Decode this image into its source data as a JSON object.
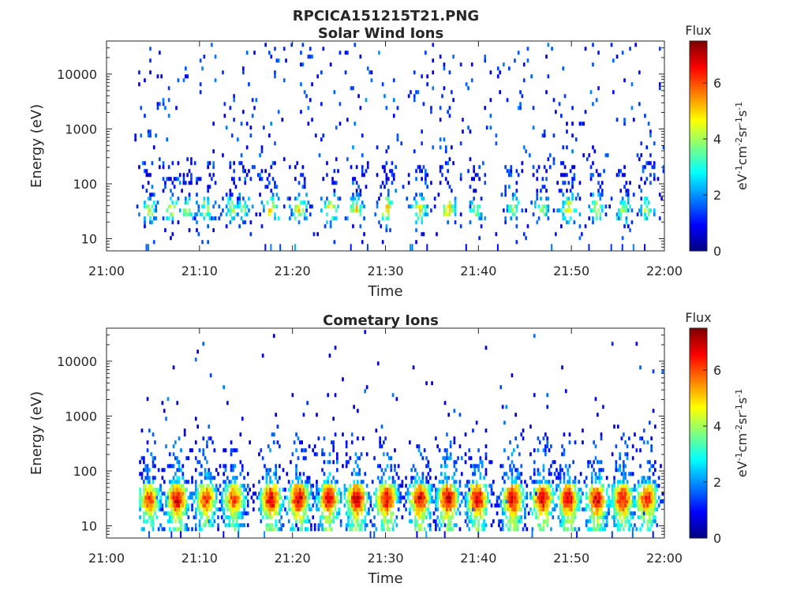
{
  "figure": {
    "filename": "RPCICA151215T21.PNG"
  },
  "colorbar": {
    "title": "Flux",
    "unit": "eV<sup>-1</sup>cm<sup>-2</sup>sr<sup>-1</sup>s<sup>-1</sup>",
    "unit_plain": "eV-1cm-2sr-1s-1",
    "ticks": [
      "0",
      "2",
      "4",
      "6"
    ],
    "range": [
      0,
      7.5
    ],
    "colormap": "jet"
  },
  "chart_data": [
    {
      "type": "heatmap",
      "title": "Solar Wind Ions",
      "xlabel": "Time",
      "ylabel": "Energy (eV)",
      "x_ticks": [
        "21:00",
        "21:10",
        "21:20",
        "21:30",
        "21:40",
        "21:50",
        "22:00"
      ],
      "x_range": [
        "21:00",
        "22:00"
      ],
      "y_ticks": [
        "10",
        "100",
        "1000",
        "10000"
      ],
      "y_range": [
        6,
        40000
      ],
      "y_scale": "log",
      "data_start": "21:03",
      "bursts": [
        {
          "t": "21:04.5",
          "peak_flux": 3.0
        },
        {
          "t": "21:06.8",
          "peak_flux": 3.5
        },
        {
          "t": "21:08.7",
          "peak_flux": 3.0
        },
        {
          "t": "21:10.6",
          "peak_flux": 3.0
        },
        {
          "t": "21:13.4",
          "peak_flux": 2.8
        },
        {
          "t": "21:14.6",
          "peak_flux": 2.8
        },
        {
          "t": "21:17.6",
          "peak_flux": 3.8
        },
        {
          "t": "21:20.6",
          "peak_flux": 3.8
        },
        {
          "t": "21:24.0",
          "peak_flux": 3.8
        },
        {
          "t": "21:26.8",
          "peak_flux": 3.6
        },
        {
          "t": "21:30.0",
          "peak_flux": 3.8
        },
        {
          "t": "21:33.6",
          "peak_flux": 3.6
        },
        {
          "t": "21:36.6",
          "peak_flux": 3.8
        },
        {
          "t": "21:39.8",
          "peak_flux": 3.0
        },
        {
          "t": "21:43.6",
          "peak_flux": 2.8
        },
        {
          "t": "21:46.8",
          "peak_flux": 2.8
        },
        {
          "t": "21:49.6",
          "peak_flux": 3.8
        },
        {
          "t": "21:52.6",
          "peak_flux": 3.6
        },
        {
          "t": "21:55.4",
          "peak_flux": 3.0
        },
        {
          "t": "21:58.0",
          "peak_flux": 2.8
        }
      ]
    },
    {
      "type": "heatmap",
      "title": "Cometary Ions",
      "xlabel": "Time",
      "ylabel": "Energy (eV)",
      "x_ticks": [
        "21:00",
        "21:10",
        "21:20",
        "21:30",
        "21:40",
        "21:50",
        "22:00"
      ],
      "x_range": [
        "21:00",
        "22:00"
      ],
      "y_ticks": [
        "10",
        "100",
        "1000",
        "10000"
      ],
      "y_range": [
        6,
        40000
      ],
      "y_scale": "log",
      "data_start": "21:03.5",
      "bursts": [
        {
          "t": "21:04.5",
          "peak_flux": 6.0
        },
        {
          "t": "21:07.5",
          "peak_flux": 6.8
        },
        {
          "t": "21:10.6",
          "peak_flux": 6.2
        },
        {
          "t": "21:13.6",
          "peak_flux": 6.0
        },
        {
          "t": "21:17.6",
          "peak_flux": 6.8
        },
        {
          "t": "21:20.6",
          "peak_flux": 7.0
        },
        {
          "t": "21:23.8",
          "peak_flux": 6.8
        },
        {
          "t": "21:26.8",
          "peak_flux": 7.0
        },
        {
          "t": "21:30.0",
          "peak_flux": 6.8
        },
        {
          "t": "21:33.6",
          "peak_flux": 6.8
        },
        {
          "t": "21:36.6",
          "peak_flux": 7.0
        },
        {
          "t": "21:39.8",
          "peak_flux": 7.0
        },
        {
          "t": "21:43.6",
          "peak_flux": 6.8
        },
        {
          "t": "21:46.8",
          "peak_flux": 6.8
        },
        {
          "t": "21:49.6",
          "peak_flux": 6.8
        },
        {
          "t": "21:52.6",
          "peak_flux": 6.8
        },
        {
          "t": "21:55.4",
          "peak_flux": 6.6
        },
        {
          "t": "21:58.0",
          "peak_flux": 6.4
        }
      ]
    }
  ]
}
